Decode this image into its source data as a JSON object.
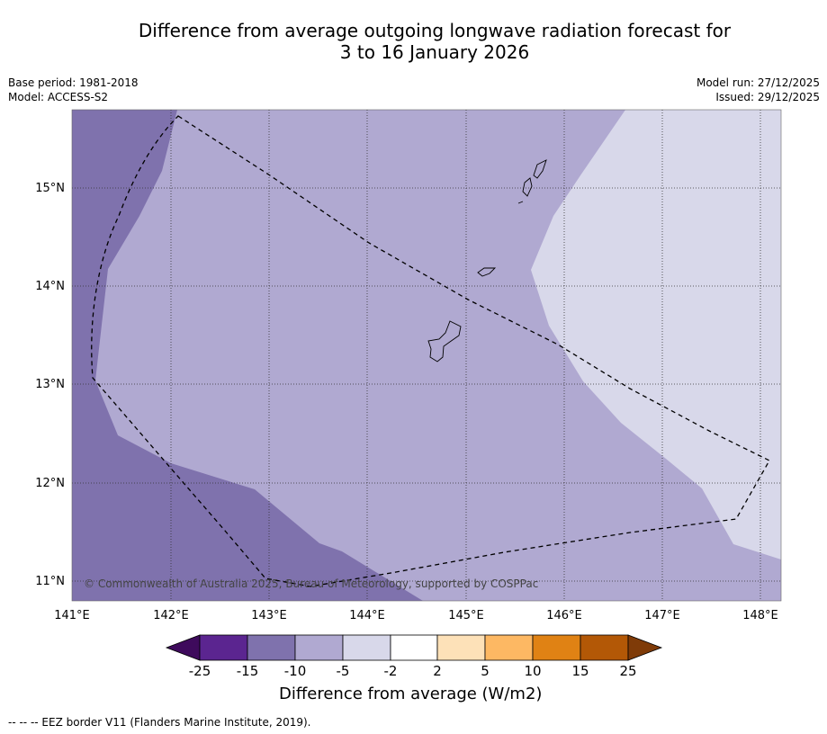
{
  "title_line1": "Difference from average outgoing longwave radiation forecast for",
  "title_line2": "3 to 16 January 2026",
  "meta": {
    "base_period": "Base period: 1981-2018",
    "model": "Model: ACCESS-S2",
    "model_run": "Model run: 27/12/2025",
    "issued": "Issued: 29/12/2025"
  },
  "map": {
    "lon_labels": [
      "141°E",
      "142°E",
      "143°E",
      "144°E",
      "145°E",
      "146°E",
      "147°E",
      "148°E"
    ],
    "lat_labels": [
      "15°N",
      "14°N",
      "13°N",
      "12°N",
      "11°N"
    ],
    "copyright": "© Commonwealth of Australia 2025, Bureau of Meteorology, supported by COSPPac",
    "colors": {
      "band_m15_m10": "#7f72ad",
      "band_m10_m5": "#b0a9d1",
      "band_m5_m2": "#d8d8ea"
    }
  },
  "colorbar": {
    "ticks": [
      "-25",
      "-15",
      "-10",
      "-5",
      "-2",
      "2",
      "5",
      "10",
      "15",
      "25"
    ],
    "colors": [
      "#3e0a5c",
      "#5b2590",
      "#7f72ad",
      "#b0a9d1",
      "#d8d8ea",
      "#ffffff",
      "#fde1b8",
      "#fdb863",
      "#e08214",
      "#b35806",
      "#7f3b08"
    ],
    "label": "Difference from average (W/m2)"
  },
  "footnote": "--  --  -- EEZ border V11 (Flanders Marine Institute, 2019)."
}
